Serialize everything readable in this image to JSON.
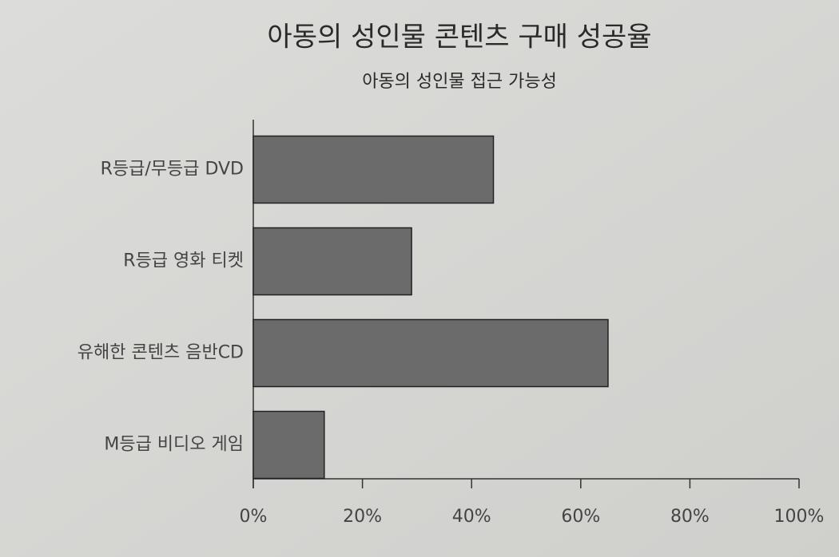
{
  "chart_data": {
    "type": "bar",
    "orientation": "horizontal",
    "title": "아동의 성인물 콘텐츠 구매 성공율",
    "subtitle": "아동의 성인물 접근 가능성",
    "categories": [
      "R등급/무등급 DVD",
      "R등급 영화 티켓",
      "유해한 콘텐츠 음반CD",
      "M등급 비디오 게임"
    ],
    "values": [
      44,
      29,
      65,
      13
    ],
    "color": "#6b6b6b",
    "xlim": [
      0,
      100
    ],
    "xticks": [
      {
        "value": 0,
        "label": "0%"
      },
      {
        "value": 20,
        "label": "20%"
      },
      {
        "value": 40,
        "label": "40%"
      },
      {
        "value": 60,
        "label": "60%"
      },
      {
        "value": 80,
        "label": "80%"
      },
      {
        "value": 100,
        "label": "100%"
      }
    ],
    "grid": false
  }
}
